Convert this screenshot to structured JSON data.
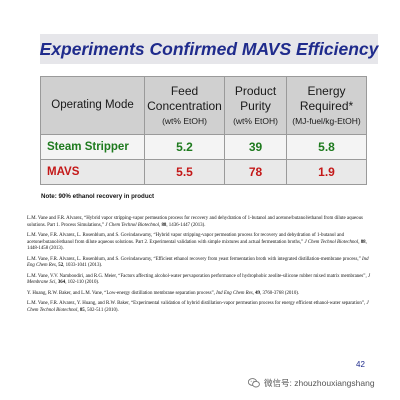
{
  "title": "Experiments Confirmed MAVS Efficiency",
  "table": {
    "headers": {
      "op_mode": "Operating Mode",
      "feed_main": [
        "Feed",
        "Concentration"
      ],
      "feed_unit": "(wt% EtOH)",
      "product_main": [
        "Product",
        "Purity"
      ],
      "product_unit": "(wt% EtOH)",
      "energy_main": [
        "Energy",
        "Required*"
      ],
      "energy_unit": "(MJ-fuel/kg-EtOH)"
    },
    "rows": [
      {
        "label": "Steam Stripper",
        "feed": "5.2",
        "purity": "39",
        "energy": "5.8",
        "color": "#1e7a1e"
      },
      {
        "label": "MAVS",
        "feed": "5.5",
        "purity": "78",
        "energy": "1.9",
        "color": "#c41818"
      }
    ]
  },
  "note": "Note: 90% ethanol recovery in product",
  "references": [
    {
      "authors": "L.M. Vane and F.R. Alvarez, “Hybrid vapor stripping-vapor permeation process for recovery and dehydration of 1-butanol and acetone/butanol/ethanol from dilute aqueous solutions. Part 1. Process Simulations,”",
      "journal": "J Chem Technol Biotechnol,",
      "volume": "88",
      "pages": ", 1436-1447 (2013)."
    },
    {
      "authors": "L.M. Vane, F.R. Alvarez, L. Rosenblum, and S. Govindaswamy, “Hybrid vapor stripping-vapor permeation process for recovery and dehydration of 1-butanol and acetone/butanol/ethanol from dilute aqueous solutions. Part 2. Experimental validation with simple mixtures and actual fermentation broths,”",
      "journal": "J Chem Technol Biotechnol,",
      "volume": "88",
      "pages": ", 1448-1458 (2013)."
    },
    {
      "authors": "L.M. Vane, F.R. Alvarez, L. Rosenblum, and S. Govindaswamy, “Efficient ethanol recovery from yeast fermentation broth with integrated distillation-membrane process,”",
      "journal": "Ind Eng Chem Res,",
      "volume": "52",
      "pages": ", 1033-1041 (2013)."
    },
    {
      "authors": "L.M. Vane, V.V. Namboodiri, and R.G. Meier, “Factors affecting alcohol-water pervaporation performance of hydrophobic zeolite-silicone rubber mixed matrix membranes”,",
      "journal": "J Membrane Sci,",
      "volume": "364",
      "pages": ", 102-110 (2010)."
    },
    {
      "authors": "Y. Huang, R.W. Baker, and L.M. Vane, “Low-energy distillation membrane separation process”,",
      "journal": "Ind Eng Chem Res,",
      "volume": "49",
      "pages": ", 3760-3768 (2010)."
    },
    {
      "authors": "L.M. Vane, F.R. Alvarez, Y. Huang, and R.W. Baker, “Experimental validation of hybrid distillation-vapor permeation process for energy efficient ethanol-water separation”,",
      "journal": "J Chem Technol Biotechnol,",
      "volume": "85",
      "pages": ", 502-511 (2010)."
    }
  ],
  "page_number": "42",
  "watermark": {
    "icon": "wechat-icon",
    "text": "微信号: zhouzhouxiangshang"
  }
}
